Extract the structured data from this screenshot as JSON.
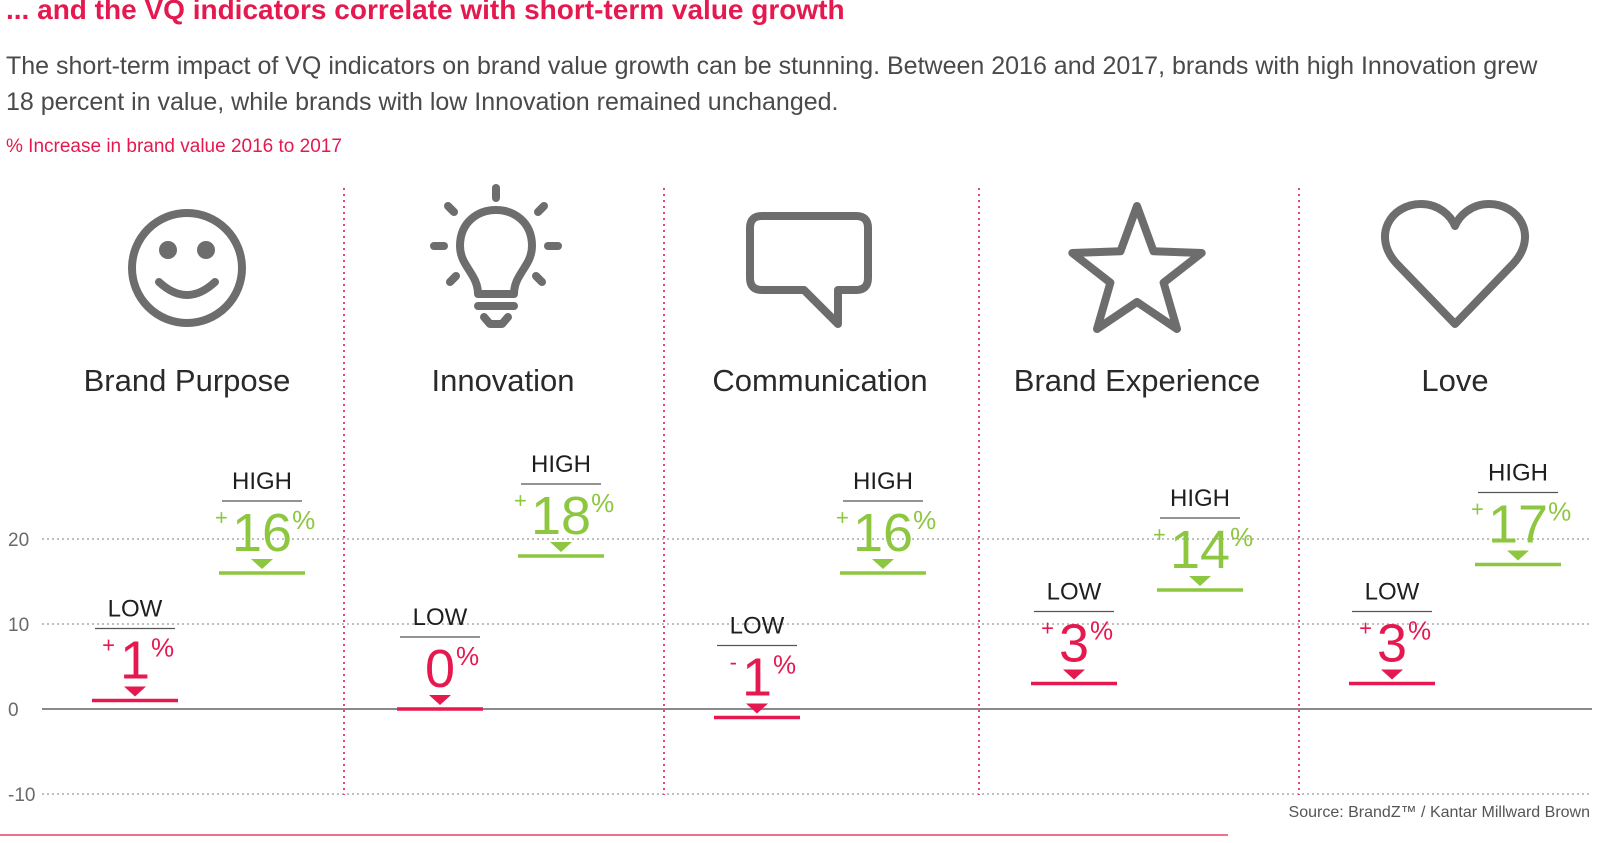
{
  "header": {
    "headline": "... and the VQ indicators correlate with short-term value growth",
    "subtitle": "The short-term impact of VQ indicators on brand value growth can be stunning. Between 2016 and 2017, brands with high Innovation grew 18 percent in value, while brands with low Innovation remained unchanged.",
    "unit_label": "% Increase in brand value 2016 to 2017"
  },
  "footer": {
    "source": "Source: BrandZ™ / Kantar Millward Brown"
  },
  "colors": {
    "low": "#e5194f",
    "high": "#8dc63f",
    "accent": "#e5194f",
    "icon": "#6d6d6d",
    "grid": "#9a9a9a",
    "text": "#3c3c3c"
  },
  "chart_data": {
    "type": "scatter",
    "y_ticks": [
      "20",
      "10",
      "0",
      "-10"
    ],
    "y_tick_values": [
      20,
      10,
      0,
      -10
    ],
    "ylim": [
      -10,
      20
    ],
    "grid": "dotted",
    "low_label": "LOW",
    "high_label": "HIGH",
    "categories": [
      {
        "name": "Brand Purpose",
        "icon": "smiley-icon",
        "low": 1,
        "low_sign": "+",
        "low_num": "1",
        "high": 16,
        "high_sign": "+",
        "high_num": "16"
      },
      {
        "name": "Innovation",
        "icon": "lightbulb-icon",
        "low": 0,
        "low_sign": "",
        "low_num": "0",
        "high": 18,
        "high_sign": "+",
        "high_num": "18"
      },
      {
        "name": "Communication",
        "icon": "speech-bubble-icon",
        "low": -1,
        "low_sign": "-",
        "low_num": "1",
        "high": 16,
        "high_sign": "+",
        "high_num": "16"
      },
      {
        "name": "Brand Experience",
        "icon": "star-icon",
        "low": 3,
        "low_sign": "+",
        "low_num": "3",
        "high": 14,
        "high_sign": "+",
        "high_num": "14"
      },
      {
        "name": "Love",
        "icon": "heart-icon",
        "low": 3,
        "low_sign": "+",
        "low_num": "3",
        "high": 17,
        "high_sign": "+",
        "high_num": "17"
      }
    ],
    "percent_symbol": "%"
  }
}
